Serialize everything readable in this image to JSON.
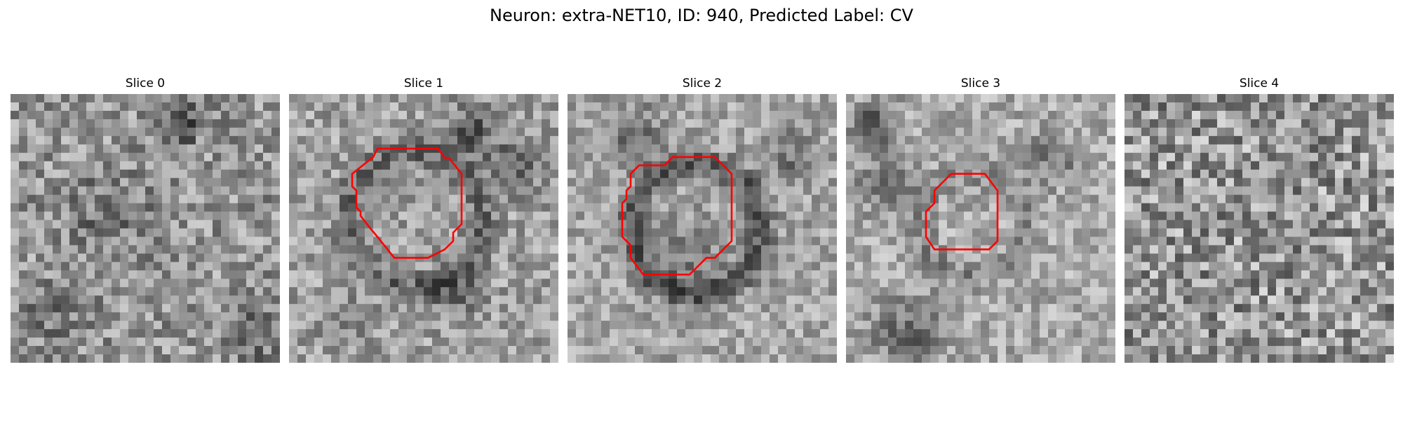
{
  "figure": {
    "title": "Neuron: extra-NET10, ID: 940, Predicted Label: CV"
  },
  "panels": [
    {
      "title": "Slice 0",
      "has_outline": false
    },
    {
      "title": "Slice 1",
      "has_outline": true
    },
    {
      "title": "Slice 2",
      "has_outline": true
    },
    {
      "title": "Slice 3",
      "has_outline": true
    },
    {
      "title": "Slice 4",
      "has_outline": false
    }
  ],
  "colors": {
    "outline": "#ff0000",
    "colormap": "gray"
  }
}
